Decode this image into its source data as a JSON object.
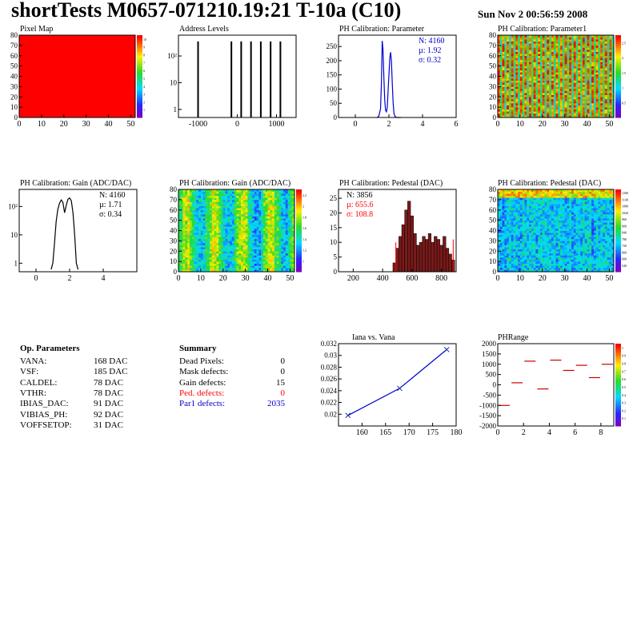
{
  "header": {
    "title": "shortTests M0657-071210.19:21 T-10a (C10)",
    "date": "Sun Nov  2 00:56:59 2008"
  },
  "colors": {
    "red": "#ff0000",
    "blue": "#0000cc",
    "darkblue": "#2233aa"
  },
  "panels": {
    "pixel_map": {
      "title": "Pixel Map"
    },
    "address_levels": {
      "title": "Address Levels"
    },
    "ph_param": {
      "title": "PH Calibration: Parameter",
      "stats": [
        "N: 4160",
        "µ: 1.92",
        "σ: 0.32"
      ]
    },
    "ph_param1": {
      "title": "PH Calibration: Parameter1"
    },
    "gain_hist": {
      "title": "PH Calibration: Gain (ADC/DAC)",
      "stats": [
        "N: 4160",
        "µ: 1.71",
        "σ: 0.34"
      ]
    },
    "gain_map": {
      "title": "PH Calibration: Gain (ADC/DAC)"
    },
    "ped_hist": {
      "title": "PH Calibration: Pedestal (DAC)",
      "stats": [
        "N: 3856",
        "µ: 655.6",
        "σ: 108.8"
      ]
    },
    "ped_map": {
      "title": "PH Calibration: Pedestal (DAC)"
    },
    "iana": {
      "title": "Iana vs. Vana"
    },
    "phrange": {
      "title": "PHRange"
    }
  },
  "op_params": {
    "heading": "Op. Parameters",
    "rows": [
      {
        "name": "VANA:",
        "value": "168 DAC"
      },
      {
        "name": "VSF:",
        "value": "185 DAC"
      },
      {
        "name": "CALDEL:",
        "value": "78 DAC"
      },
      {
        "name": "VTHR:",
        "value": "78 DAC"
      },
      {
        "name": "IBIAS_DAC:",
        "value": "91 DAC"
      },
      {
        "name": "VIBIAS_PH:",
        "value": "92 DAC"
      },
      {
        "name": "VOFFSETOP:",
        "value": "31 DAC"
      }
    ]
  },
  "summary": {
    "heading": "Summary",
    "rows": [
      {
        "name": "Dead Pixels:",
        "value": "0",
        "color": "#000000"
      },
      {
        "name": "Mask defects:",
        "value": "0",
        "color": "#000000"
      },
      {
        "name": "Gain defects:",
        "value": "15",
        "color": "#000000"
      },
      {
        "name": "Ped. defects:",
        "value": "0",
        "color": "#ff0000"
      },
      {
        "name": "Par1 defects:",
        "value": "2035",
        "color": "#0000cc"
      }
    ]
  },
  "chart_data": [
    {
      "id": "pixel_map",
      "type": "heatmap",
      "title": "Pixel Map",
      "xlim": [
        0,
        52
      ],
      "ylim": [
        0,
        80
      ],
      "xticks": [
        "0",
        "10",
        "20",
        "30",
        "40",
        "50"
      ],
      "yticks": [
        "0",
        "10",
        "20",
        "30",
        "40",
        "50",
        "60",
        "70",
        "80"
      ],
      "uniform_color": "#ff0000",
      "zticks": [
        "1",
        "2",
        "3",
        "4",
        "5",
        "6",
        "7",
        "8",
        "9",
        "10"
      ]
    },
    {
      "id": "address_levels",
      "type": "bar",
      "title": "Address Levels",
      "log_y": true,
      "xlim": [
        -1500,
        1500
      ],
      "xticks": [
        "-1000",
        "0",
        "1000"
      ],
      "ylim": [
        0.5,
        600
      ],
      "yticks": [
        "1",
        "10",
        "10²"
      ],
      "peaks": [
        {
          "x": -1000,
          "h": 350
        },
        {
          "x": -150,
          "h": 350
        },
        {
          "x": 100,
          "h": 350
        },
        {
          "x": 350,
          "h": 350
        },
        {
          "x": 600,
          "h": 350
        },
        {
          "x": 850,
          "h": 350
        },
        {
          "x": 1100,
          "h": 350
        }
      ]
    },
    {
      "id": "ph_param",
      "type": "line",
      "title": "PH Calibration: Parameter",
      "xlim": [
        -1,
        6
      ],
      "ylim": [
        0,
        290
      ],
      "xticks": [
        "0",
        "2",
        "4",
        "6"
      ],
      "yticks": [
        "0",
        "50",
        "100",
        "150",
        "200",
        "250"
      ],
      "x": [
        1.3,
        1.4,
        1.5,
        1.55,
        1.6,
        1.65,
        1.7,
        1.75,
        1.8,
        1.85,
        1.9,
        1.95,
        2.0,
        2.05,
        2.1,
        2.15,
        2.2,
        2.25,
        2.3,
        2.35,
        2.4,
        2.45,
        2.5,
        2.6,
        2.7
      ],
      "y": [
        0,
        5,
        30,
        120,
        270,
        240,
        140,
        60,
        25,
        20,
        35,
        90,
        150,
        210,
        230,
        200,
        120,
        50,
        15,
        5,
        2,
        0,
        0,
        0,
        0
      ]
    },
    {
      "id": "ph_param1",
      "type": "heatmap",
      "title": "PH Calibration: Parameter1",
      "xlim": [
        0,
        52
      ],
      "ylim": [
        0,
        80
      ],
      "xticks": [
        "0",
        "10",
        "20",
        "30",
        "40",
        "50"
      ],
      "yticks": [
        "0",
        "10",
        "20",
        "30",
        "40",
        "50",
        "60",
        "70",
        "80"
      ],
      "zticks": [
        "0.5",
        "1",
        "1.5",
        "2",
        "2.5"
      ]
    },
    {
      "id": "gain_hist",
      "type": "line",
      "title": "PH Calibration: Gain (ADC/DAC)",
      "log_y": true,
      "xlim": [
        -1,
        6
      ],
      "ylim": [
        0.5,
        400
      ],
      "xticks": [
        "0",
        "2",
        "4"
      ],
      "yticks": [
        "1",
        "10",
        "10²"
      ],
      "x": [
        0.9,
        1.0,
        1.1,
        1.2,
        1.3,
        1.4,
        1.5,
        1.6,
        1.7,
        1.8,
        1.9,
        2.0,
        2.1,
        2.2,
        2.3,
        2.4,
        2.5
      ],
      "y": [
        0.6,
        1,
        5,
        30,
        80,
        130,
        170,
        140,
        60,
        110,
        180,
        200,
        160,
        60,
        10,
        1,
        0.6
      ]
    },
    {
      "id": "gain_map",
      "type": "heatmap",
      "title": "PH Calibration: Gain (ADC/DAC)",
      "xlim": [
        0,
        52
      ],
      "ylim": [
        0,
        80
      ],
      "xticks": [
        "0",
        "10",
        "20",
        "30",
        "40",
        "50"
      ],
      "yticks": [
        "0",
        "10",
        "20",
        "30",
        "40",
        "50",
        "60",
        "70",
        "80"
      ],
      "zticks": [
        "1",
        "1.2",
        "1.4",
        "1.6",
        "1.8",
        "2",
        "2.2"
      ]
    },
    {
      "id": "ped_hist",
      "type": "bar",
      "title": "PH Calibration: Pedestal (DAC)",
      "xlim": [
        100,
        900
      ],
      "ylim": [
        0,
        28
      ],
      "xticks": [
        "200",
        "400",
        "600",
        "800"
      ],
      "yticks": [
        "0",
        "5",
        "10",
        "15",
        "20",
        "25"
      ],
      "x": [
        480,
        500,
        520,
        540,
        560,
        580,
        600,
        620,
        640,
        660,
        680,
        700,
        720,
        740,
        760,
        780,
        800,
        820,
        840,
        860,
        880
      ],
      "y": [
        3,
        8,
        12,
        16,
        21,
        24,
        19,
        13,
        9,
        10,
        12,
        11,
        13,
        10,
        12,
        11,
        9,
        12,
        8,
        6,
        4
      ]
    },
    {
      "id": "ped_map",
      "type": "heatmap",
      "title": "PH Calibration: Pedestal (DAC)",
      "xlim": [
        0,
        52
      ],
      "ylim": [
        0,
        80
      ],
      "xticks": [
        "0",
        "10",
        "20",
        "30",
        "40",
        "50"
      ],
      "yticks": [
        "0",
        "10",
        "20",
        "30",
        "40",
        "50",
        "60",
        "70",
        "80"
      ],
      "zticks": [
        "540",
        "600",
        "660",
        "720",
        "780",
        "840",
        "900",
        "960",
        "1020",
        "1080",
        "1140",
        "1200"
      ]
    },
    {
      "id": "iana",
      "type": "line",
      "title": "Iana vs. Vana",
      "xlim": [
        155,
        180
      ],
      "ylim": [
        0.018,
        0.032
      ],
      "xticks": [
        "160",
        "165",
        "170",
        "175",
        "180"
      ],
      "yticks": [
        "0.02",
        "0.022",
        "0.024",
        "0.026",
        "0.028",
        "0.03",
        "0.032"
      ],
      "x": [
        157,
        168,
        178
      ],
      "y": [
        0.0198,
        0.0244,
        0.031
      ]
    },
    {
      "id": "phrange",
      "type": "scatter",
      "title": "PHRange",
      "xlim": [
        0,
        9
      ],
      "ylim": [
        -2000,
        2000
      ],
      "xticks": [
        "0",
        "2",
        "4",
        "6",
        "8"
      ],
      "yticks": [
        "-2000",
        "-1500",
        "-1000",
        "-500",
        "0",
        "500",
        "1000",
        "1500",
        "2000"
      ],
      "zticks": [
        "0.1",
        "0.2",
        "0.3",
        "0.4",
        "0.5",
        "0.6",
        "0.7",
        "0.8",
        "0.9",
        "1"
      ],
      "x": [
        0.5,
        1.5,
        2.5,
        3.5,
        4.5,
        5.5,
        6.5,
        7.5,
        8.5
      ],
      "y": [
        -1000,
        100,
        1150,
        -200,
        1200,
        700,
        950,
        350,
        1000
      ]
    }
  ]
}
